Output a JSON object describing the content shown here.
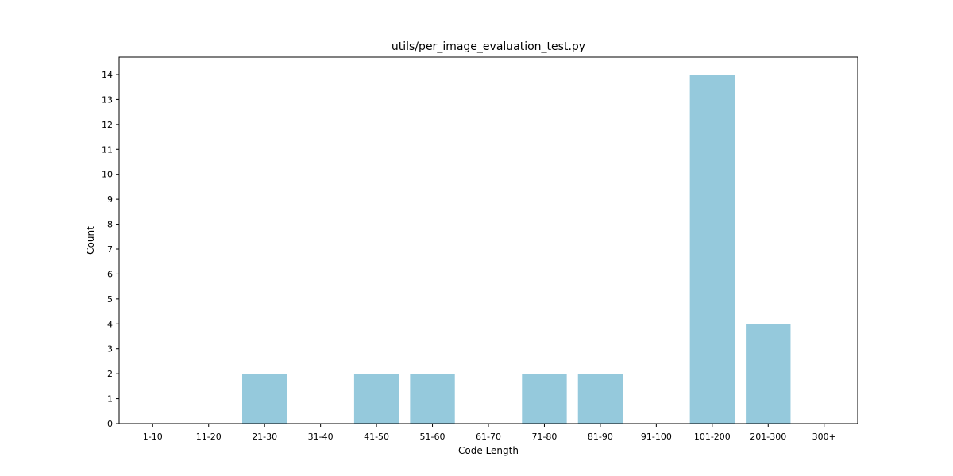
{
  "chart_data": {
    "type": "bar",
    "title": "utils/per_image_evaluation_test.py",
    "xlabel": "Code Length",
    "ylabel": "Count",
    "categories": [
      "1-10",
      "11-20",
      "21-30",
      "31-40",
      "41-50",
      "51-60",
      "61-70",
      "71-80",
      "81-90",
      "91-100",
      "101-200",
      "201-300",
      "300+"
    ],
    "values": [
      0,
      0,
      2,
      0,
      2,
      2,
      0,
      2,
      2,
      0,
      14,
      4,
      0
    ],
    "ylim": [
      0,
      14.7
    ],
    "yticks": [
      0,
      1,
      2,
      3,
      4,
      5,
      6,
      7,
      8,
      9,
      10,
      11,
      12,
      13,
      14
    ],
    "bar_color": "#95c9dc",
    "grid": false,
    "legend": false
  }
}
